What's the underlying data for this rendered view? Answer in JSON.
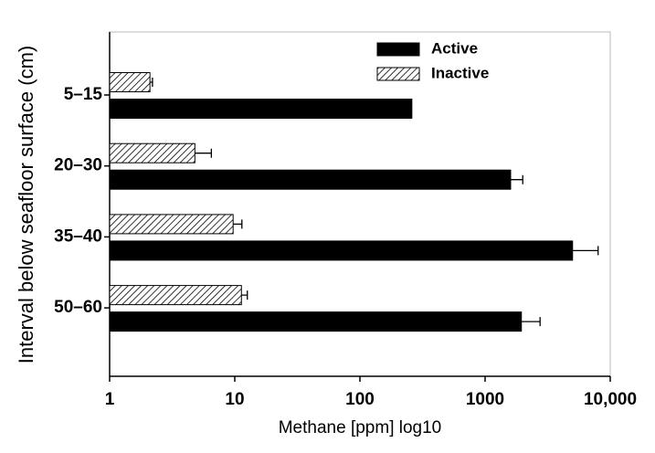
{
  "chart_data": {
    "type": "bar",
    "orientation": "horizontal",
    "x_label": "Methane [ppm]  log10",
    "y_label": "Interval below seafloor surface (cm)",
    "categories": [
      "5–15",
      "20–30",
      "35–40",
      "50–60"
    ],
    "series": [
      {
        "name": "Active",
        "color": "#000000",
        "values": [
          260,
          1600,
          5000,
          1950
        ],
        "errors": [
          null,
          400,
          3000,
          800
        ]
      },
      {
        "name": "Inactive",
        "color": "#ffffff",
        "pattern": "hatch",
        "values": [
          2.1,
          4.8,
          9.7,
          11.3
        ],
        "errors": [
          0.1,
          1.7,
          1.7,
          1.3
        ]
      }
    ],
    "xscale": "log",
    "xlim": [
      1,
      10000
    ],
    "xticks": [
      1,
      10,
      100,
      1000,
      {
        "value": 10000,
        "label": "10,000"
      }
    ],
    "legend": "top-right"
  }
}
